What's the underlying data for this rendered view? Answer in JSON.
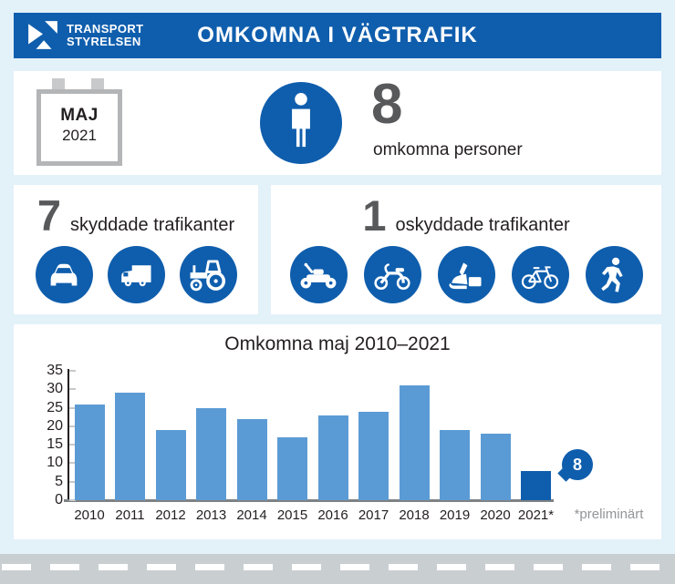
{
  "header": {
    "logo_line1": "TRANSPORT",
    "logo_line2": "STYRELSEN",
    "title": "OMKOMNA I VÄGTRAFIK"
  },
  "summary": {
    "calendar_month": "MAJ",
    "calendar_year": "2021",
    "count": "8",
    "count_label": "omkomna personer",
    "icon": "person-icon"
  },
  "protected": {
    "count": "7",
    "label": "skyddade trafikanter",
    "icons": [
      "car-icon",
      "truck-icon",
      "tractor-icon"
    ]
  },
  "unprotected": {
    "count": "1",
    "label": "oskyddade trafikanter",
    "icons": [
      "motorcycle-icon",
      "moped-icon",
      "snowmobile-icon",
      "bicycle-icon",
      "pedestrian-icon"
    ]
  },
  "chart_data": {
    "type": "bar",
    "title": "Omkomna maj 2010–2021",
    "categories": [
      "2010",
      "2011",
      "2012",
      "2013",
      "2014",
      "2015",
      "2016",
      "2017",
      "2018",
      "2019",
      "2020",
      "2021*"
    ],
    "values": [
      26,
      29,
      19,
      25,
      22,
      17,
      23,
      24,
      31,
      19,
      18,
      8
    ],
    "xlabel": "",
    "ylabel": "",
    "ylim": [
      0,
      35
    ],
    "ytick_step": 5,
    "grid": false,
    "legend": false,
    "bar_color": "#5b9bd5",
    "highlight_index": 11,
    "highlight_color": "#0f5ead",
    "callout_value": "8",
    "footnote": "*preliminärt"
  },
  "colors": {
    "brand_blue": "#0f5ead",
    "bar_blue": "#5b9bd5",
    "background": "#e3f1f9",
    "road_gray": "#c9ced1",
    "number_gray": "#58595b",
    "footnote_gray": "#939598"
  }
}
